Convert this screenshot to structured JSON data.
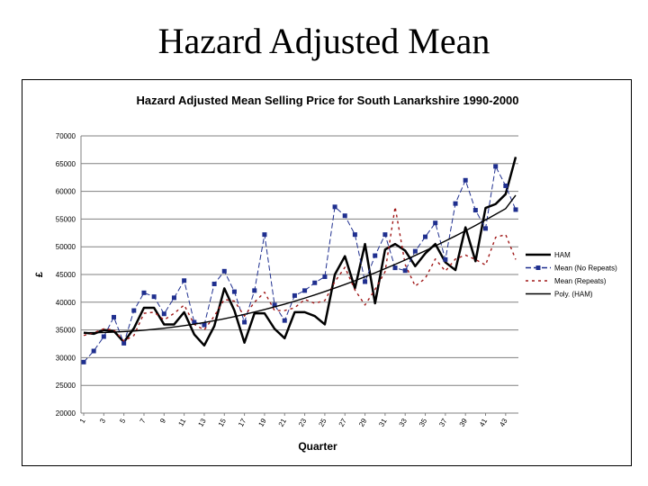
{
  "slide": {
    "title": "Hazard Adjusted Mean"
  },
  "chart_data": {
    "type": "line",
    "title": "Hazard Adjusted Mean Selling Price for South Lanarkshire 1990-2000",
    "xlabel": "Quarter",
    "ylabel": "£",
    "ylim": [
      20000,
      70000
    ],
    "yticks": [
      "20000",
      "25000",
      "30000",
      "35000",
      "40000",
      "45000",
      "50000",
      "55000",
      "60000",
      "65000",
      "70000"
    ],
    "xticks": [
      "1",
      "3",
      "5",
      "7",
      "9",
      "11",
      "13",
      "15",
      "17",
      "19",
      "21",
      "23",
      "25",
      "27",
      "29",
      "31",
      "33",
      "35",
      "37",
      "39",
      "41",
      "43"
    ],
    "x": [
      1,
      2,
      3,
      4,
      5,
      6,
      7,
      8,
      9,
      10,
      11,
      12,
      13,
      14,
      15,
      16,
      17,
      18,
      19,
      20,
      21,
      22,
      23,
      24,
      25,
      26,
      27,
      28,
      29,
      30,
      31,
      32,
      33,
      34,
      35,
      36,
      37,
      38,
      39,
      40,
      41,
      42,
      43,
      44
    ],
    "series": [
      {
        "name": "HAM",
        "color": "#000000",
        "marker": "none",
        "dash": "none",
        "values": [
          34500,
          34300,
          35000,
          34800,
          32800,
          35300,
          39000,
          39000,
          36000,
          36000,
          38200,
          34200,
          32200,
          35700,
          42500,
          38500,
          32700,
          38000,
          38000,
          35200,
          33500,
          38200,
          38200,
          37500,
          36000,
          45000,
          48300,
          42500,
          50500,
          39800,
          49500,
          50500,
          49300,
          46500,
          48800,
          50500,
          47200,
          45800,
          53500,
          47400,
          57000,
          57700,
          59500,
          66200
        ]
      },
      {
        "name": "Mean (No Repeats)",
        "color": "#1f2f8f",
        "marker": "square",
        "dash": "6,3",
        "values": [
          29200,
          31200,
          33800,
          37300,
          32600,
          38500,
          41700,
          41000,
          37900,
          40800,
          43900,
          36400,
          35900,
          43300,
          45600,
          41900,
          36400,
          42100,
          52200,
          39500,
          36700,
          41200,
          42100,
          43500,
          44600,
          57200,
          55600,
          52200,
          43700,
          48400,
          52200,
          46200,
          45700,
          49200,
          51800,
          54300,
          47700,
          57800,
          62000,
          56600,
          53300,
          64500,
          61000,
          56700
        ]
      },
      {
        "name": "Mean (Repeats)",
        "color": "#a01818",
        "marker": "none",
        "dash": "3,4",
        "values": [
          34000,
          34500,
          35200,
          35000,
          33000,
          34000,
          38000,
          38200,
          36800,
          38000,
          39500,
          36000,
          35000,
          37500,
          40500,
          40200,
          37500,
          40000,
          41800,
          38500,
          38500,
          39000,
          40500,
          39800,
          40300,
          43700,
          46300,
          42200,
          39500,
          42300,
          45500,
          57200,
          46800,
          42900,
          44300,
          47800,
          45600,
          47800,
          48500,
          47700,
          46700,
          51700,
          52200,
          47700
        ]
      },
      {
        "name": "Poly. (HAM)",
        "color": "#000000",
        "marker": "none",
        "dash": "none",
        "trend": true,
        "values": [
          34500,
          34510,
          34550,
          34610,
          34700,
          34810,
          34950,
          35120,
          35310,
          35530,
          35780,
          36050,
          36350,
          36670,
          37020,
          37400,
          37800,
          38230,
          38680,
          39160,
          39660,
          40190,
          40740,
          41320,
          41920,
          42550,
          43200,
          43880,
          44580,
          45300,
          46050,
          46820,
          47620,
          48440,
          49280,
          50150,
          51040,
          51950,
          52890,
          53850,
          54840,
          55850,
          56880,
          59300
        ]
      }
    ],
    "legend_position": "right",
    "grid": true
  }
}
